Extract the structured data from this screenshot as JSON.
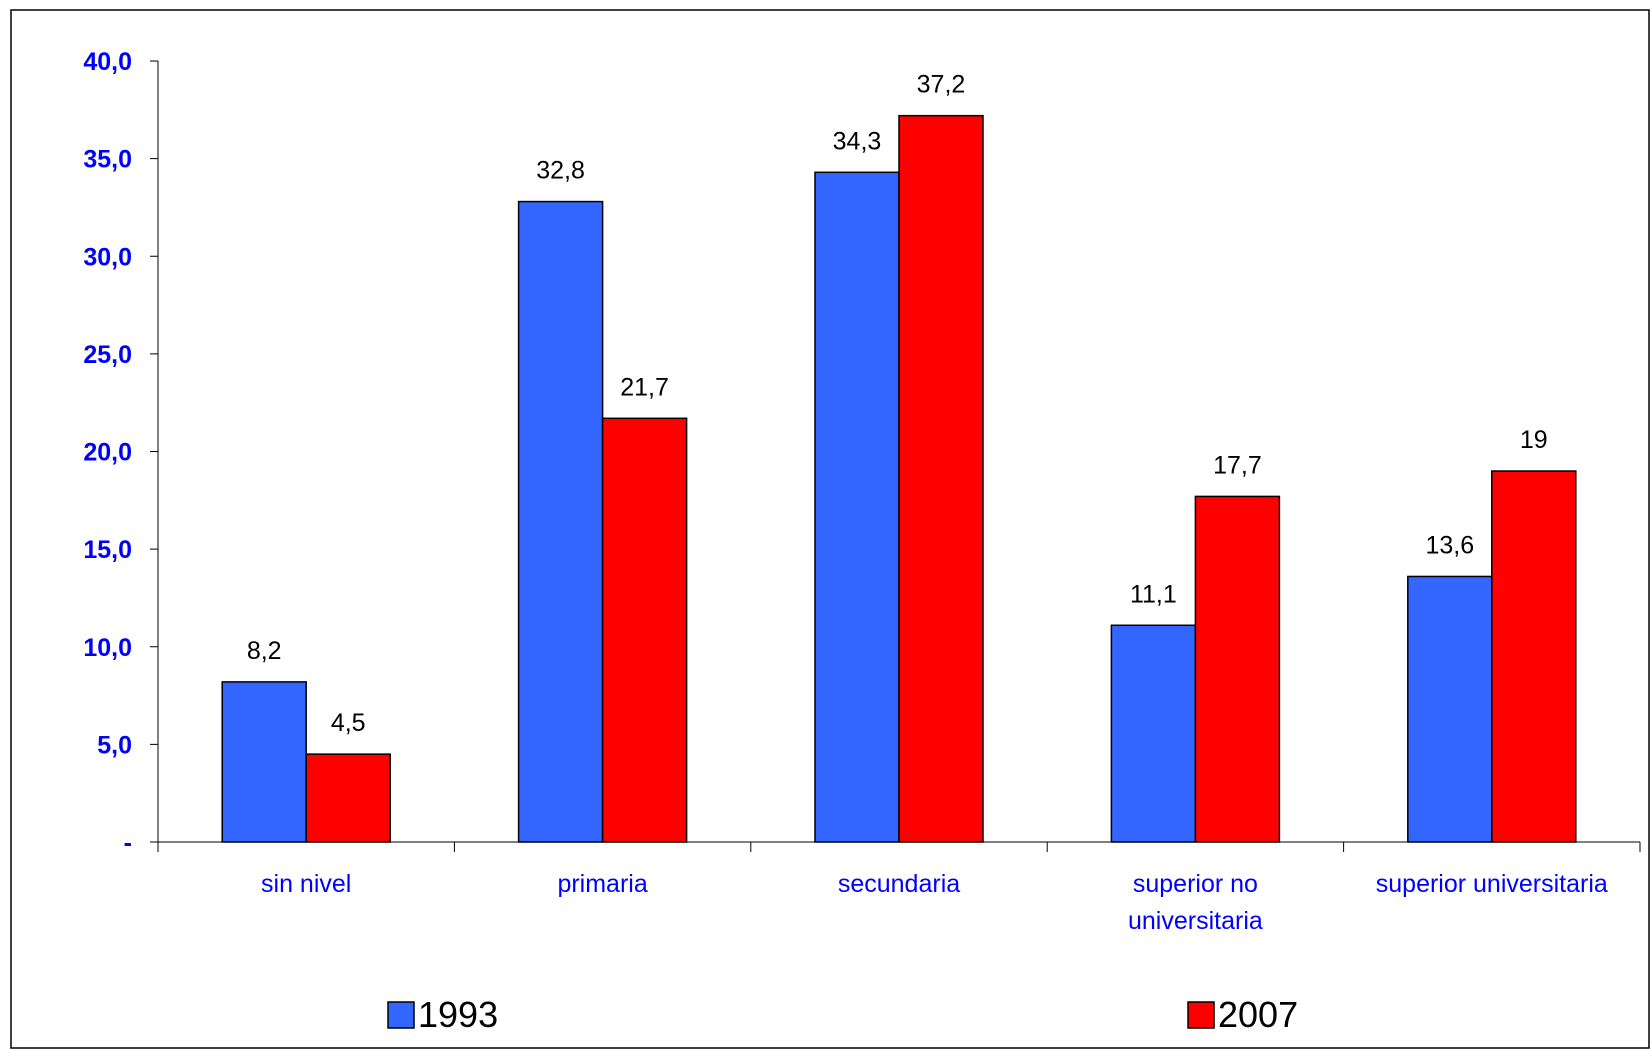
{
  "chart_data": {
    "type": "bar",
    "title": "",
    "xlabel": "",
    "ylabel": "",
    "categories": [
      [
        "sin nivel"
      ],
      [
        "primaria"
      ],
      [
        "secundaria"
      ],
      [
        "superior no",
        "universitaria"
      ],
      [
        "superior universitaria"
      ]
    ],
    "series": [
      {
        "name": "1993",
        "values": [
          8.2,
          32.8,
          34.3,
          11.1,
          13.6
        ],
        "labels": [
          "8,2",
          "32,8",
          "34,3",
          "11,1",
          "13,6"
        ],
        "color": "#3366FF"
      },
      {
        "name": "2007",
        "values": [
          4.5,
          21.7,
          37.2,
          17.7,
          19.0
        ],
        "labels": [
          "4,5",
          "21,7",
          "37,2",
          "17,7",
          "19"
        ],
        "color": "#FF0000"
      }
    ],
    "ylim": [
      0,
      40
    ],
    "yticks": [
      0,
      5,
      10,
      15,
      20,
      25,
      30,
      35,
      40
    ],
    "ytick_labels": [
      "-",
      "5,0",
      "10,0",
      "15,0",
      "20,0",
      "25,0",
      "30,0",
      "35,0",
      "40,0"
    ],
    "grid": false,
    "legend_position": "bottom",
    "axis_label_color": "#0000FF"
  }
}
